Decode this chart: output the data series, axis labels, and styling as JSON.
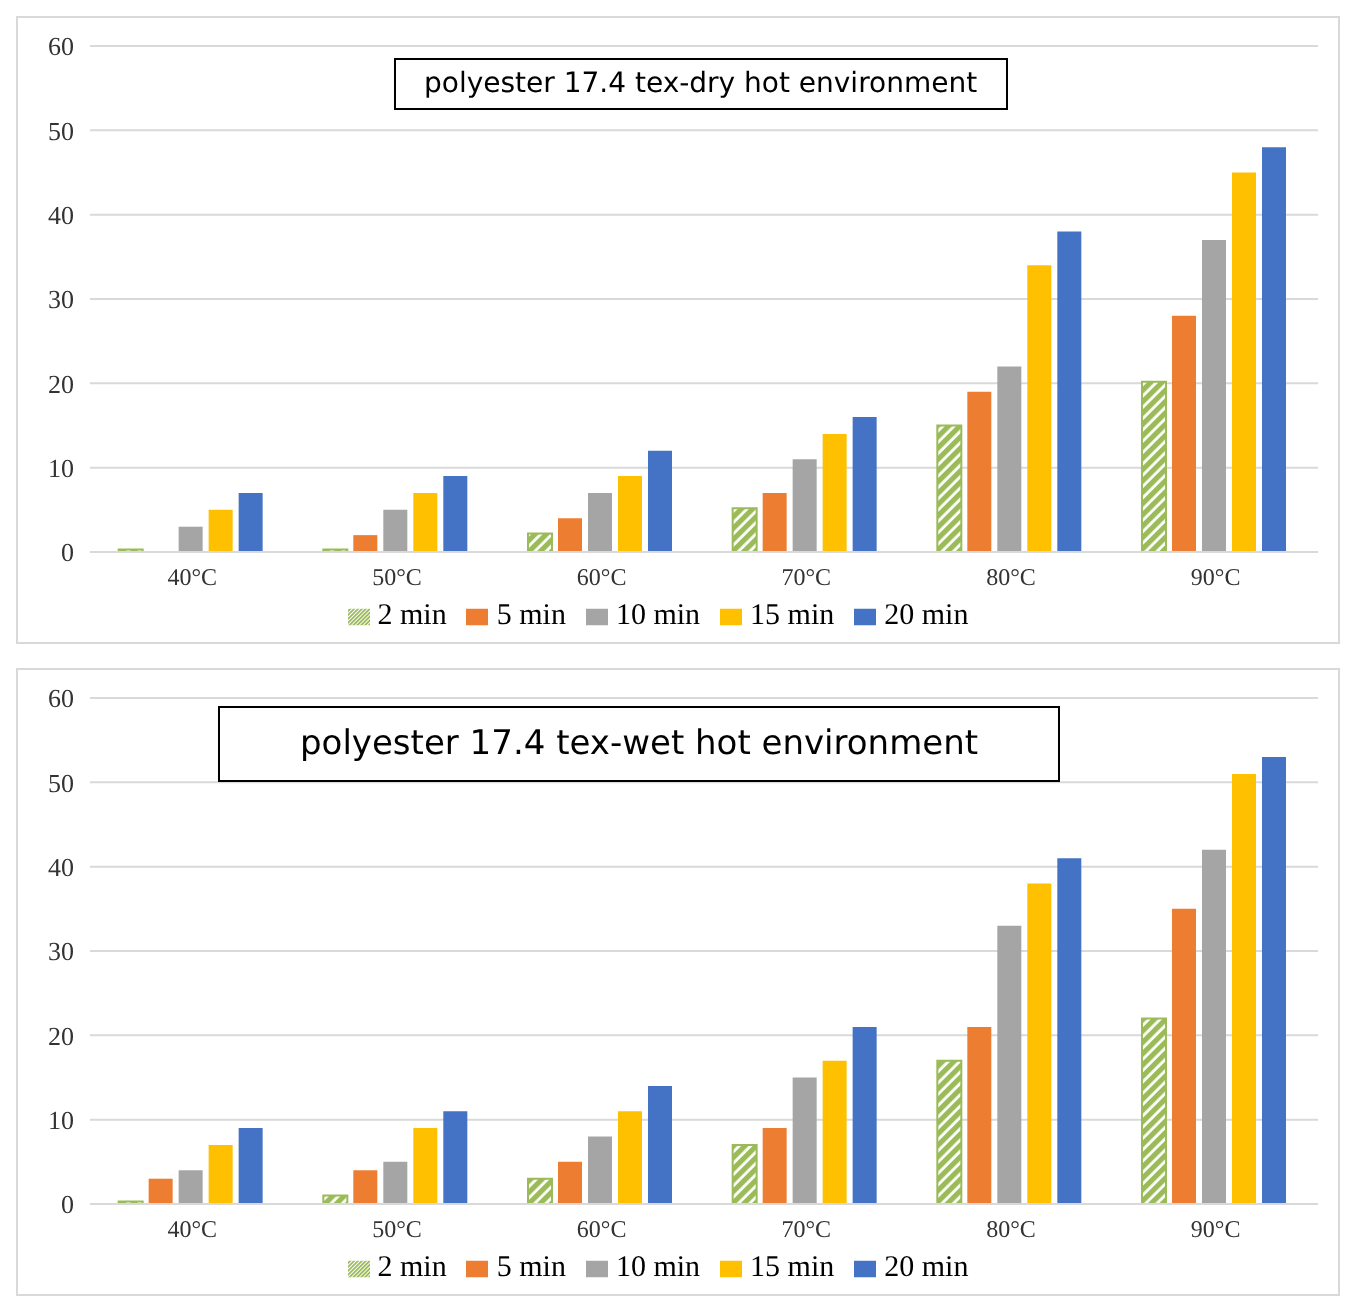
{
  "chart_data": [
    {
      "type": "bar",
      "title": "polyester 17.4 tex-dry hot environment",
      "categories": [
        "40°C",
        "50°C",
        "60°C",
        "70°C",
        "80°C",
        "90°C"
      ],
      "series": [
        {
          "name": "2 min",
          "color": "#9bbb59",
          "values": [
            0.3,
            0.3,
            2.2,
            5.2,
            15,
            20.2
          ]
        },
        {
          "name": "5 min",
          "color": "#ed7d31",
          "values": [
            0,
            2,
            4,
            7,
            19,
            28
          ]
        },
        {
          "name": "10 min",
          "color": "#a5a5a5",
          "values": [
            3,
            5,
            7,
            11,
            22,
            37
          ]
        },
        {
          "name": "15 min",
          "color": "#ffc000",
          "values": [
            5,
            7,
            9,
            14,
            34,
            45
          ]
        },
        {
          "name": "20 min",
          "color": "#4472c4",
          "values": [
            7,
            9,
            12,
            16,
            38,
            48
          ]
        }
      ],
      "ylim": [
        0,
        60
      ],
      "yticks": [
        0,
        10,
        20,
        30,
        40,
        50,
        60
      ],
      "grid": "y",
      "legend": "bottom"
    },
    {
      "type": "bar",
      "title": "polyester 17.4 tex-wet hot environment",
      "categories": [
        "40°C",
        "50°C",
        "60°C",
        "70°C",
        "80°C",
        "90°C"
      ],
      "series": [
        {
          "name": "2 min",
          "color": "#9bbb59",
          "values": [
            0.3,
            1,
            3,
            7,
            17,
            22
          ]
        },
        {
          "name": "5 min",
          "color": "#ed7d31",
          "values": [
            3,
            4,
            5,
            9,
            21,
            35
          ]
        },
        {
          "name": "10 min",
          "color": "#a5a5a5",
          "values": [
            4,
            5,
            8,
            15,
            33,
            42
          ]
        },
        {
          "name": "15 min",
          "color": "#ffc000",
          "values": [
            7,
            9,
            11,
            17,
            38,
            51
          ]
        },
        {
          "name": "20 min",
          "color": "#4472c4",
          "values": [
            9,
            11,
            14,
            21,
            41,
            53
          ]
        }
      ],
      "ylim": [
        0,
        60
      ],
      "yticks": [
        0,
        10,
        20,
        30,
        40,
        50,
        60
      ],
      "grid": "y",
      "legend": "bottom"
    }
  ]
}
